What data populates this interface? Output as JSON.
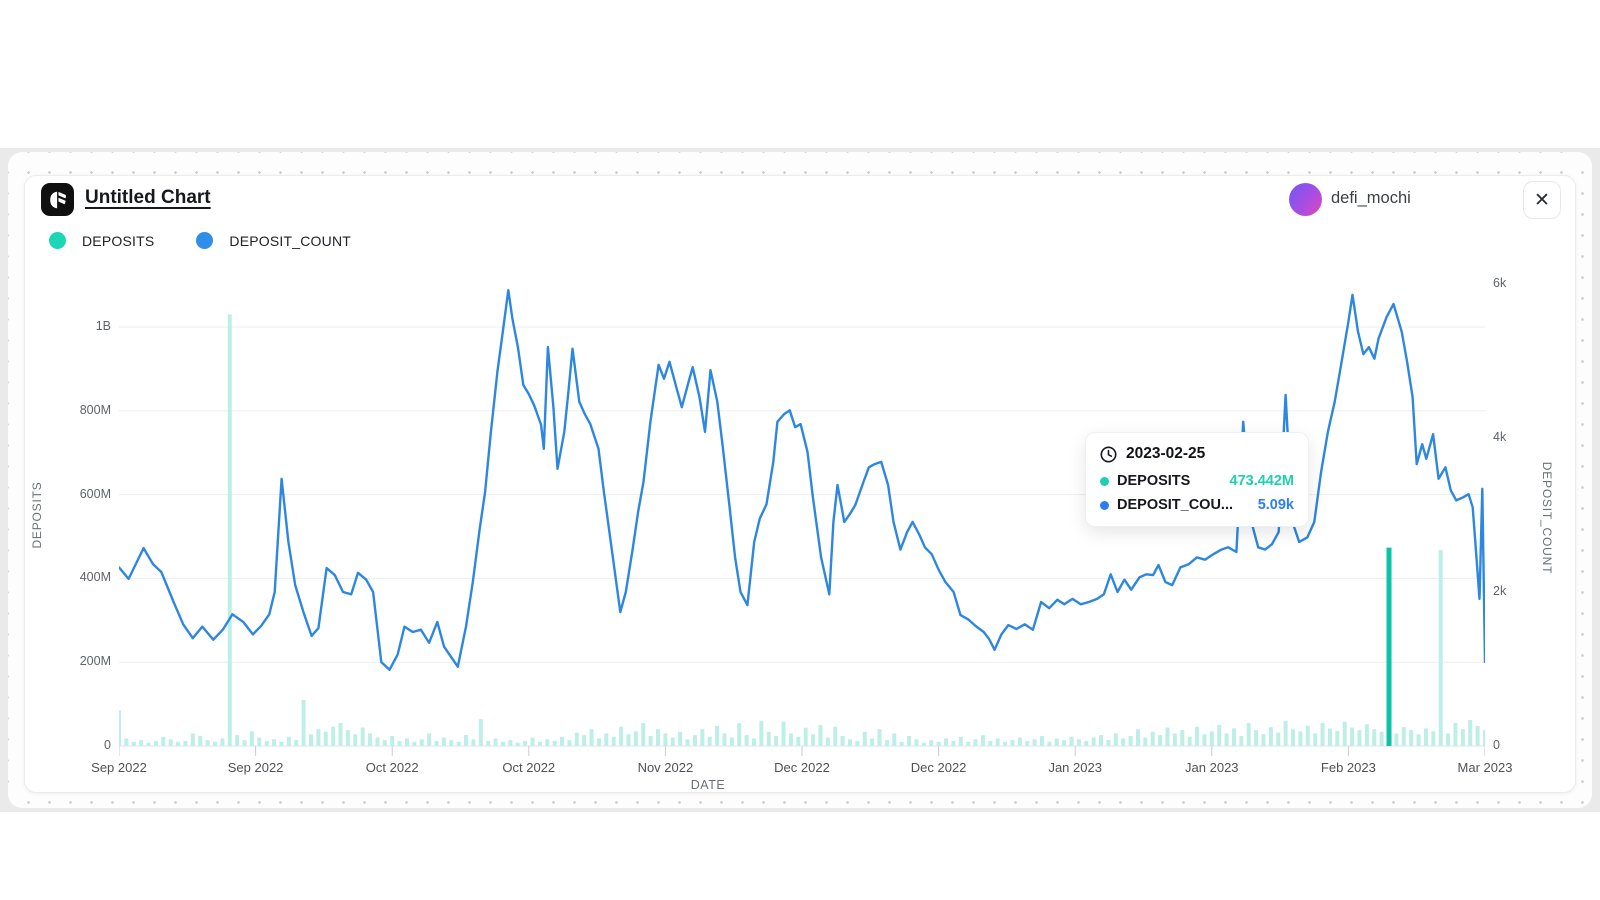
{
  "header": {
    "title": "Untitled Chart"
  },
  "user": {
    "name": "defi_mochi"
  },
  "icons": {
    "close": "✕",
    "logo": "flipside-mark",
    "clock": "clock"
  },
  "legend": [
    {
      "label": "DEPOSITS",
      "color": "#1ed6b5"
    },
    {
      "label": "DEPOSIT_COUNT",
      "color": "#2e8eea"
    }
  ],
  "tooltip": {
    "date": "2023-02-25",
    "rows": [
      {
        "label": "DEPOSITS",
        "value": "473.442M",
        "color": "#1fcfae"
      },
      {
        "label": "DEPOSIT_COU...",
        "value": "5.09k",
        "color": "#2d7ff0"
      }
    ]
  },
  "chart_data": {
    "type": "bar+line (dual axis)",
    "x_axis": {
      "label": "DATE",
      "tick_labels": [
        "Sep 2022",
        "Sep 2022",
        "Oct 2022",
        "Oct 2022",
        "Nov 2022",
        "Dec 2022",
        "Dec 2022",
        "Jan 2023",
        "Jan 2023",
        "Feb 2023",
        "Mar 2023"
      ]
    },
    "left_axis": {
      "label": "DEPOSITS",
      "unit": "M",
      "max": 1000,
      "ticks": [
        {
          "v": 0,
          "t": "0"
        },
        {
          "v": 200,
          "t": "200M"
        },
        {
          "v": 400,
          "t": "400M"
        },
        {
          "v": 600,
          "t": "600M"
        },
        {
          "v": 800,
          "t": "800M"
        },
        {
          "v": 1000,
          "t": "1B"
        }
      ]
    },
    "right_axis": {
      "label": "DEPOSIT_COUNT",
      "unit": "k",
      "max": 6,
      "ticks": [
        {
          "v": 0,
          "t": "0"
        },
        {
          "v": 2,
          "t": "2k"
        },
        {
          "v": 4,
          "t": "4k"
        },
        {
          "v": 6,
          "t": "6k"
        }
      ]
    },
    "grid": "horizontal at 200M steps",
    "series": [
      {
        "name": "DEPOSITS",
        "type": "bar",
        "axis": "left",
        "unit": "M",
        "color_normal": "#bdeee7",
        "color_highlight": "#0cc3a6",
        "highlight_index": 172,
        "values": [
          85,
          18,
          10,
          14,
          8,
          12,
          22,
          16,
          10,
          12,
          30,
          24,
          14,
          10,
          18,
          1030,
          26,
          14,
          35,
          20,
          12,
          16,
          10,
          22,
          14,
          110,
          28,
          40,
          34,
          46,
          55,
          38,
          28,
          44,
          30,
          20,
          14,
          24,
          12,
          18,
          10,
          16,
          30,
          12,
          20,
          14,
          10,
          26,
          16,
          64,
          12,
          18,
          10,
          14,
          8,
          12,
          20,
          10,
          16,
          12,
          22,
          14,
          32,
          26,
          40,
          18,
          30,
          22,
          46,
          28,
          35,
          55,
          24,
          40,
          30,
          20,
          34,
          16,
          26,
          40,
          22,
          48,
          30,
          20,
          55,
          26,
          18,
          60,
          34,
          24,
          58,
          30,
          22,
          44,
          28,
          50,
          20,
          46,
          24,
          16,
          12,
          34,
          18,
          40,
          14,
          30,
          10,
          24,
          16,
          8,
          14,
          10,
          18,
          12,
          22,
          10,
          16,
          26,
          12,
          18,
          10,
          14,
          20,
          12,
          16,
          24,
          10,
          18,
          14,
          22,
          16,
          12,
          20,
          26,
          14,
          30,
          18,
          24,
          40,
          20,
          34,
          26,
          44,
          30,
          38,
          22,
          46,
          28,
          35,
          50,
          30,
          42,
          24,
          55,
          38,
          28,
          45,
          32,
          60,
          40,
          35,
          48,
          30,
          55,
          42,
          36,
          58,
          44,
          38,
          52,
          40,
          34,
          473.442,
          30,
          45,
          38,
          28,
          42,
          35,
          468,
          30,
          55,
          40,
          62,
          48,
          38
        ]
      },
      {
        "name": "DEPOSIT_COUNT",
        "type": "line",
        "axis": "right",
        "unit": "k",
        "color": "#2d87e0",
        "hover_value_k": 5.09,
        "points": [
          [
            0.0,
            2.32
          ],
          [
            0.007,
            2.17
          ],
          [
            0.013,
            2.39
          ],
          [
            0.018,
            2.57
          ],
          [
            0.025,
            2.36
          ],
          [
            0.031,
            2.26
          ],
          [
            0.04,
            1.87
          ],
          [
            0.047,
            1.58
          ],
          [
            0.054,
            1.4
          ],
          [
            0.061,
            1.55
          ],
          [
            0.069,
            1.38
          ],
          [
            0.076,
            1.51
          ],
          [
            0.083,
            1.71
          ],
          [
            0.091,
            1.61
          ],
          [
            0.098,
            1.45
          ],
          [
            0.104,
            1.56
          ],
          [
            0.11,
            1.71
          ],
          [
            0.114,
            2.0
          ],
          [
            0.119,
            3.47
          ],
          [
            0.124,
            2.65
          ],
          [
            0.129,
            2.09
          ],
          [
            0.135,
            1.74
          ],
          [
            0.141,
            1.43
          ],
          [
            0.146,
            1.53
          ],
          [
            0.152,
            2.31
          ],
          [
            0.158,
            2.22
          ],
          [
            0.164,
            2.0
          ],
          [
            0.17,
            1.97
          ],
          [
            0.175,
            2.25
          ],
          [
            0.181,
            2.16
          ],
          [
            0.186,
            2.0
          ],
          [
            0.192,
            1.09
          ],
          [
            0.198,
            0.99
          ],
          [
            0.204,
            1.19
          ],
          [
            0.209,
            1.55
          ],
          [
            0.215,
            1.48
          ],
          [
            0.221,
            1.51
          ],
          [
            0.227,
            1.34
          ],
          [
            0.233,
            1.61
          ],
          [
            0.238,
            1.29
          ],
          [
            0.243,
            1.16
          ],
          [
            0.248,
            1.03
          ],
          [
            0.254,
            1.55
          ],
          [
            0.259,
            2.13
          ],
          [
            0.264,
            2.81
          ],
          [
            0.268,
            3.3
          ],
          [
            0.272,
            4.04
          ],
          [
            0.277,
            4.86
          ],
          [
            0.281,
            5.38
          ],
          [
            0.285,
            5.92
          ],
          [
            0.288,
            5.55
          ],
          [
            0.292,
            5.18
          ],
          [
            0.296,
            4.69
          ],
          [
            0.3,
            4.57
          ],
          [
            0.304,
            4.42
          ],
          [
            0.309,
            4.17
          ],
          [
            0.311,
            3.86
          ],
          [
            0.314,
            5.18
          ],
          [
            0.318,
            4.4
          ],
          [
            0.321,
            3.6
          ],
          [
            0.326,
            4.08
          ],
          [
            0.329,
            4.6
          ],
          [
            0.332,
            5.16
          ],
          [
            0.337,
            4.47
          ],
          [
            0.341,
            4.31
          ],
          [
            0.345,
            4.18
          ],
          [
            0.351,
            3.86
          ],
          [
            0.355,
            3.3
          ],
          [
            0.359,
            2.78
          ],
          [
            0.364,
            2.13
          ],
          [
            0.367,
            1.74
          ],
          [
            0.371,
            2.0
          ],
          [
            0.376,
            2.55
          ],
          [
            0.38,
            3.04
          ],
          [
            0.384,
            3.43
          ],
          [
            0.389,
            4.21
          ],
          [
            0.395,
            4.95
          ],
          [
            0.399,
            4.77
          ],
          [
            0.403,
            4.99
          ],
          [
            0.408,
            4.66
          ],
          [
            0.412,
            4.4
          ],
          [
            0.417,
            4.73
          ],
          [
            0.42,
            4.92
          ],
          [
            0.425,
            4.53
          ],
          [
            0.429,
            4.08
          ],
          [
            0.433,
            4.88
          ],
          [
            0.438,
            4.47
          ],
          [
            0.442,
            3.88
          ],
          [
            0.447,
            3.1
          ],
          [
            0.451,
            2.45
          ],
          [
            0.455,
            2.0
          ],
          [
            0.46,
            1.83
          ],
          [
            0.465,
            2.65
          ],
          [
            0.469,
            2.95
          ],
          [
            0.474,
            3.14
          ],
          [
            0.479,
            3.69
          ],
          [
            0.482,
            4.21
          ],
          [
            0.487,
            4.31
          ],
          [
            0.491,
            4.36
          ],
          [
            0.495,
            4.14
          ],
          [
            0.499,
            4.18
          ],
          [
            0.504,
            3.82
          ],
          [
            0.508,
            3.23
          ],
          [
            0.514,
            2.45
          ],
          [
            0.52,
            1.97
          ],
          [
            0.523,
            2.91
          ],
          [
            0.526,
            3.39
          ],
          [
            0.531,
            2.91
          ],
          [
            0.535,
            3.01
          ],
          [
            0.539,
            3.13
          ],
          [
            0.545,
            3.43
          ],
          [
            0.549,
            3.62
          ],
          [
            0.553,
            3.66
          ],
          [
            0.558,
            3.69
          ],
          [
            0.563,
            3.39
          ],
          [
            0.567,
            2.91
          ],
          [
            0.572,
            2.55
          ],
          [
            0.577,
            2.78
          ],
          [
            0.581,
            2.91
          ],
          [
            0.586,
            2.74
          ],
          [
            0.59,
            2.58
          ],
          [
            0.595,
            2.49
          ],
          [
            0.6,
            2.29
          ],
          [
            0.605,
            2.13
          ],
          [
            0.611,
            2.0
          ],
          [
            0.616,
            1.7
          ],
          [
            0.622,
            1.64
          ],
          [
            0.627,
            1.56
          ],
          [
            0.633,
            1.48
          ],
          [
            0.637,
            1.39
          ],
          [
            0.641,
            1.25
          ],
          [
            0.646,
            1.45
          ],
          [
            0.651,
            1.57
          ],
          [
            0.657,
            1.52
          ],
          [
            0.663,
            1.58
          ],
          [
            0.669,
            1.51
          ],
          [
            0.675,
            1.87
          ],
          [
            0.681,
            1.79
          ],
          [
            0.687,
            1.9
          ],
          [
            0.692,
            1.84
          ],
          [
            0.698,
            1.91
          ],
          [
            0.704,
            1.84
          ],
          [
            0.71,
            1.87
          ],
          [
            0.716,
            1.91
          ],
          [
            0.721,
            1.97
          ],
          [
            0.726,
            2.23
          ],
          [
            0.731,
            2.0
          ],
          [
            0.736,
            2.16
          ],
          [
            0.741,
            2.03
          ],
          [
            0.747,
            2.19
          ],
          [
            0.752,
            2.23
          ],
          [
            0.757,
            2.22
          ],
          [
            0.761,
            2.35
          ],
          [
            0.766,
            2.13
          ],
          [
            0.771,
            2.09
          ],
          [
            0.777,
            2.32
          ],
          [
            0.783,
            2.36
          ],
          [
            0.789,
            2.45
          ],
          [
            0.795,
            2.42
          ],
          [
            0.801,
            2.49
          ],
          [
            0.807,
            2.55
          ],
          [
            0.812,
            2.58
          ],
          [
            0.818,
            2.52
          ],
          [
            0.823,
            4.21
          ],
          [
            0.829,
            2.91
          ],
          [
            0.834,
            2.58
          ],
          [
            0.839,
            2.55
          ],
          [
            0.844,
            2.62
          ],
          [
            0.849,
            2.78
          ],
          [
            0.854,
            4.56
          ],
          [
            0.859,
            2.91
          ],
          [
            0.864,
            2.65
          ],
          [
            0.87,
            2.71
          ],
          [
            0.875,
            2.91
          ],
          [
            0.88,
            3.56
          ],
          [
            0.885,
            4.08
          ],
          [
            0.89,
            4.47
          ],
          [
            0.895,
            4.99
          ],
          [
            0.9,
            5.51
          ],
          [
            0.903,
            5.86
          ],
          [
            0.907,
            5.38
          ],
          [
            0.911,
            5.09
          ],
          [
            0.915,
            5.18
          ],
          [
            0.919,
            5.03
          ],
          [
            0.922,
            5.29
          ],
          [
            0.928,
            5.57
          ],
          [
            0.933,
            5.74
          ],
          [
            0.939,
            5.38
          ],
          [
            0.943,
            4.99
          ],
          [
            0.947,
            4.53
          ],
          [
            0.95,
            3.66
          ],
          [
            0.954,
            3.92
          ],
          [
            0.957,
            3.73
          ],
          [
            0.962,
            4.05
          ],
          [
            0.966,
            3.47
          ],
          [
            0.971,
            3.62
          ],
          [
            0.975,
            3.32
          ],
          [
            0.979,
            3.19
          ],
          [
            0.984,
            3.23
          ],
          [
            0.988,
            3.27
          ],
          [
            0.991,
            3.1
          ],
          [
            0.994,
            2.39
          ],
          [
            0.996,
            1.91
          ],
          [
            0.998,
            3.34
          ],
          [
            1.0,
            1.09
          ]
        ]
      }
    ]
  }
}
